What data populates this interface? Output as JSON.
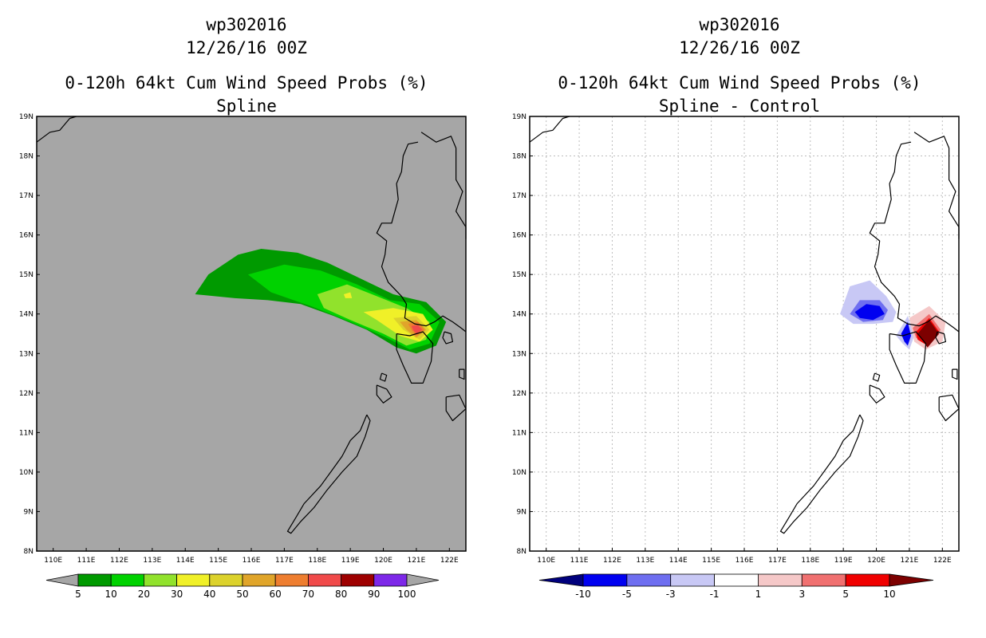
{
  "chart_data": [
    {
      "type": "heatmap",
      "storm_id": "wp302016",
      "date": "12/26/16 00Z",
      "title": "0-120h 64kt Cum Wind Speed Probs (%)",
      "subtitle": "Spline",
      "units": "%",
      "xlim": [
        109.5,
        122.5
      ],
      "ylim": [
        8,
        19
      ],
      "x_ticks": [
        "110E",
        "111E",
        "112E",
        "113E",
        "114E",
        "115E",
        "116E",
        "117E",
        "118E",
        "119E",
        "120E",
        "121E",
        "122E"
      ],
      "y_ticks": [
        "8N",
        "9N",
        "10N",
        "11N",
        "12N",
        "13N",
        "14N",
        "15N",
        "16N",
        "17N",
        "18N",
        "19N"
      ],
      "background_color": "#a6a6a6",
      "colorbar": {
        "levels": [
          "5",
          "10",
          "20",
          "30",
          "40",
          "50",
          "60",
          "70",
          "80",
          "90",
          "100"
        ],
        "colors": [
          "#009a00",
          "#00d200",
          "#91e22c",
          "#f0f028",
          "#dcd22c",
          "#e0a52a",
          "#ee7e30",
          "#f04a4a",
          "#9e0000",
          "#7d28e8"
        ]
      },
      "contours": [
        {
          "level": 5,
          "color": "#009a00",
          "points": [
            [
              114.3,
              14.5
            ],
            [
              114.7,
              15.0
            ],
            [
              115.6,
              15.5
            ],
            [
              116.3,
              15.65
            ],
            [
              117.4,
              15.55
            ],
            [
              118.3,
              15.3
            ],
            [
              119.3,
              14.9
            ],
            [
              120.3,
              14.5
            ],
            [
              121.3,
              14.3
            ],
            [
              121.9,
              13.8
            ],
            [
              121.6,
              13.2
            ],
            [
              121.0,
              13.0
            ],
            [
              120.4,
              13.15
            ],
            [
              119.5,
              13.6
            ],
            [
              118.5,
              13.95
            ],
            [
              117.5,
              14.25
            ],
            [
              116.5,
              14.35
            ],
            [
              115.5,
              14.4
            ]
          ]
        },
        {
          "level": 10,
          "color": "#00d200",
          "points": [
            [
              115.9,
              15.0
            ],
            [
              117.0,
              15.25
            ],
            [
              118.1,
              15.1
            ],
            [
              119.2,
              14.75
            ],
            [
              120.2,
              14.35
            ],
            [
              121.1,
              14.25
            ],
            [
              121.7,
              13.8
            ],
            [
              121.4,
              13.25
            ],
            [
              120.8,
              13.1
            ],
            [
              120.1,
              13.4
            ],
            [
              119.0,
              13.8
            ],
            [
              117.8,
              14.2
            ],
            [
              116.6,
              14.55
            ]
          ]
        },
        {
          "level": 20,
          "color": "#91e22c",
          "points": [
            [
              118.0,
              14.5
            ],
            [
              118.9,
              14.75
            ],
            [
              119.8,
              14.45
            ],
            [
              120.7,
              14.15
            ],
            [
              121.4,
              13.8
            ],
            [
              121.3,
              13.35
            ],
            [
              120.7,
              13.2
            ],
            [
              120.0,
              13.5
            ],
            [
              119.0,
              13.85
            ],
            [
              118.2,
              14.15
            ]
          ]
        },
        {
          "level": 30,
          "color": "#f0f028",
          "points": [
            [
              119.4,
              14.05
            ],
            [
              120.3,
              14.15
            ],
            [
              121.2,
              14.0
            ],
            [
              121.5,
              13.6
            ],
            [
              121.1,
              13.3
            ],
            [
              120.5,
              13.45
            ],
            [
              119.8,
              13.85
            ]
          ]
        },
        {
          "level": 40,
          "color": "#dcd22c",
          "points": [
            [
              120.3,
              13.9
            ],
            [
              121.0,
              13.95
            ],
            [
              121.4,
              13.6
            ],
            [
              121.1,
              13.35
            ],
            [
              120.6,
              13.6
            ]
          ]
        },
        {
          "level": 50,
          "color": "#e0a52a",
          "points": [
            [
              120.5,
              13.8
            ],
            [
              121.0,
              13.85
            ],
            [
              121.3,
              13.6
            ],
            [
              121.0,
              13.4
            ],
            [
              120.7,
              13.6
            ]
          ]
        },
        {
          "level": 60,
          "color": "#ee7e30",
          "points": [
            [
              120.75,
              13.75
            ],
            [
              121.05,
              13.8
            ],
            [
              121.25,
              13.6
            ],
            [
              121.0,
              13.45
            ],
            [
              120.85,
              13.6
            ]
          ]
        },
        {
          "level": 70,
          "color": "#f04a4a",
          "points": [
            [
              120.85,
              13.7
            ],
            [
              121.05,
              13.72
            ],
            [
              121.18,
              13.6
            ],
            [
              121.0,
              13.5
            ],
            [
              120.9,
              13.6
            ]
          ]
        },
        {
          "level": 30,
          "color": "#f0f028",
          "points": [
            [
              118.8,
              14.5
            ],
            [
              119.0,
              14.55
            ],
            [
              119.05,
              14.4
            ],
            [
              118.85,
              14.4
            ]
          ]
        }
      ]
    },
    {
      "type": "heatmap",
      "storm_id": "wp302016",
      "date": "12/26/16 00Z",
      "title": "0-120h 64kt Cum Wind Speed Probs (%)",
      "subtitle": "Spline - Control",
      "units": "%",
      "xlim": [
        109.5,
        122.5
      ],
      "ylim": [
        8,
        19
      ],
      "x_ticks": [
        "110E",
        "111E",
        "112E",
        "113E",
        "114E",
        "115E",
        "116E",
        "117E",
        "118E",
        "119E",
        "120E",
        "121E",
        "122E"
      ],
      "y_ticks": [
        "8N",
        "9N",
        "10N",
        "11N",
        "12N",
        "13N",
        "14N",
        "15N",
        "16N",
        "17N",
        "18N",
        "19N"
      ],
      "grid": true,
      "background_color": "#ffffff",
      "colorbar": {
        "levels": [
          "-10",
          "-5",
          "-3",
          "-1",
          "1",
          "3",
          "5",
          "10"
        ],
        "colors": [
          "#00007d",
          "#0000f0",
          "#6e6ef0",
          "#c8c8f5",
          "#ffffff",
          "#f5c8c8",
          "#f07070",
          "#f00000",
          "#7d0000"
        ]
      },
      "contours": [
        {
          "level": -1,
          "color": "#c8c8f5",
          "points": [
            [
              118.9,
              14.0
            ],
            [
              119.2,
              14.7
            ],
            [
              119.8,
              14.85
            ],
            [
              120.3,
              14.45
            ],
            [
              120.6,
              14.05
            ],
            [
              120.5,
              13.8
            ],
            [
              119.9,
              13.75
            ],
            [
              119.3,
              13.75
            ]
          ]
        },
        {
          "level": -3,
          "color": "#6e6ef0",
          "points": [
            [
              119.2,
              14.0
            ],
            [
              119.5,
              14.35
            ],
            [
              120.1,
              14.35
            ],
            [
              120.35,
              14.1
            ],
            [
              120.2,
              13.85
            ],
            [
              119.6,
              13.8
            ]
          ]
        },
        {
          "level": -5,
          "color": "#0000f0",
          "points": [
            [
              119.35,
              14.05
            ],
            [
              119.7,
              14.25
            ],
            [
              120.1,
              14.2
            ],
            [
              120.25,
              14.0
            ],
            [
              119.9,
              13.85
            ],
            [
              119.5,
              13.9
            ]
          ]
        },
        {
          "level": -1,
          "color": "#c8c8f5",
          "points": [
            [
              120.6,
              13.45
            ],
            [
              120.95,
              13.95
            ],
            [
              121.15,
              13.45
            ],
            [
              121.0,
              13.1
            ],
            [
              120.8,
              13.25
            ]
          ]
        },
        {
          "level": -5,
          "color": "#0000f0",
          "points": [
            [
              120.75,
              13.5
            ],
            [
              120.95,
              13.8
            ],
            [
              121.05,
              13.45
            ],
            [
              120.95,
              13.2
            ],
            [
              120.85,
              13.3
            ]
          ]
        },
        {
          "level": 1,
          "color": "#f5c8c8",
          "points": [
            [
              121.0,
              13.9
            ],
            [
              121.6,
              14.2
            ],
            [
              122.1,
              13.8
            ],
            [
              122.0,
              13.3
            ],
            [
              121.5,
              13.1
            ],
            [
              121.15,
              13.3
            ]
          ]
        },
        {
          "level": 3,
          "color": "#f07070",
          "points": [
            [
              121.1,
              13.65
            ],
            [
              121.6,
              14.0
            ],
            [
              121.95,
              13.6
            ],
            [
              121.6,
              13.2
            ],
            [
              121.2,
              13.4
            ]
          ]
        },
        {
          "level": 5,
          "color": "#f00000",
          "points": [
            [
              121.2,
              13.55
            ],
            [
              121.6,
              13.9
            ],
            [
              121.9,
              13.55
            ],
            [
              121.55,
              13.2
            ],
            [
              121.25,
              13.35
            ]
          ]
        },
        {
          "level": 10,
          "color": "#7d0000",
          "points": [
            [
              121.25,
              13.5
            ],
            [
              121.6,
              13.85
            ],
            [
              121.9,
              13.5
            ],
            [
              121.55,
              13.15
            ]
          ]
        }
      ]
    }
  ]
}
